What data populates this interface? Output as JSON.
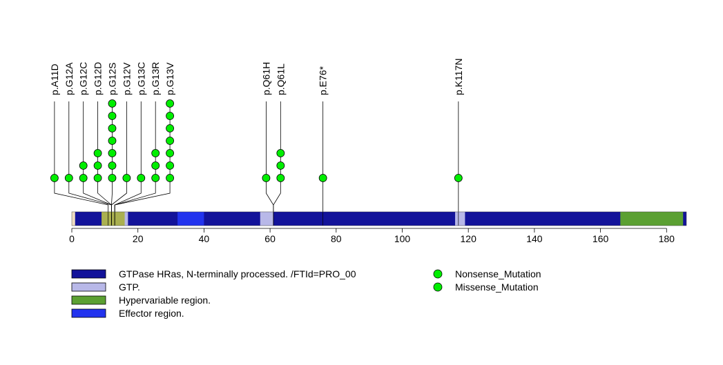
{
  "chart_data": {
    "type": "lollipop",
    "title": "",
    "xlabel": "",
    "ylabel": "",
    "xlim": [
      0,
      186
    ],
    "x_ticks": [
      0,
      20,
      40,
      60,
      80,
      100,
      120,
      140,
      160,
      180
    ],
    "protein_length": 186,
    "mutations": [
      {
        "label": "p.A11D",
        "position": 11,
        "count": 1
      },
      {
        "label": "p.G12A",
        "position": 12,
        "count": 1
      },
      {
        "label": "p.G12C",
        "position": 12,
        "count": 2
      },
      {
        "label": "p.G12D",
        "position": 12,
        "count": 3
      },
      {
        "label": "p.G12S",
        "position": 12,
        "count": 7
      },
      {
        "label": "p.G12V",
        "position": 12,
        "count": 1
      },
      {
        "label": "p.G13C",
        "position": 13,
        "count": 1
      },
      {
        "label": "p.G13R",
        "position": 13,
        "count": 3
      },
      {
        "label": "p.G13V",
        "position": 13,
        "count": 7
      },
      {
        "label": "p.Q61H",
        "position": 61,
        "count": 1
      },
      {
        "label": "p.Q61L",
        "position": 61,
        "count": 3
      },
      {
        "label": "p.E76*",
        "position": 76,
        "count": 1
      },
      {
        "label": "p.K117N",
        "position": 117,
        "count": 1
      }
    ],
    "domains": [
      {
        "name": "GTPase HRas, N-terminally processed. /FTId=PRO_00",
        "start": 1,
        "end": 186,
        "color": "#13139a"
      },
      {
        "name": "GTP.",
        "start": 10,
        "end": 17,
        "color": "#b8b8e8"
      },
      {
        "name": "Effector region.",
        "start": 32,
        "end": 40,
        "color": "#2233ee"
      },
      {
        "name": "GTP.",
        "start": 57,
        "end": 61,
        "color": "#b8b8e8"
      },
      {
        "name": "GTP.",
        "start": 116,
        "end": 119,
        "color": "#b8b8e8"
      },
      {
        "name": "Hypervariable region.",
        "start": 166,
        "end": 185,
        "color": "#5ba032"
      }
    ],
    "overlap_regions": [
      {
        "start": 9,
        "end": 16,
        "color": "#aab050"
      }
    ],
    "legend": {
      "domains": [
        {
          "label": "GTPase HRas, N-terminally processed. /FTId=PRO_00",
          "color": "#13139a"
        },
        {
          "label": "GTP.",
          "color": "#b8b8e8"
        },
        {
          "label": "Hypervariable region.",
          "color": "#5ba032"
        },
        {
          "label": "Effector region.",
          "color": "#2233ee"
        }
      ],
      "mutation_types": [
        {
          "label": "Nonsense_Mutation",
          "color": "#00ee00"
        },
        {
          "label": "Missense_Mutation",
          "color": "#00ee00"
        }
      ]
    }
  }
}
